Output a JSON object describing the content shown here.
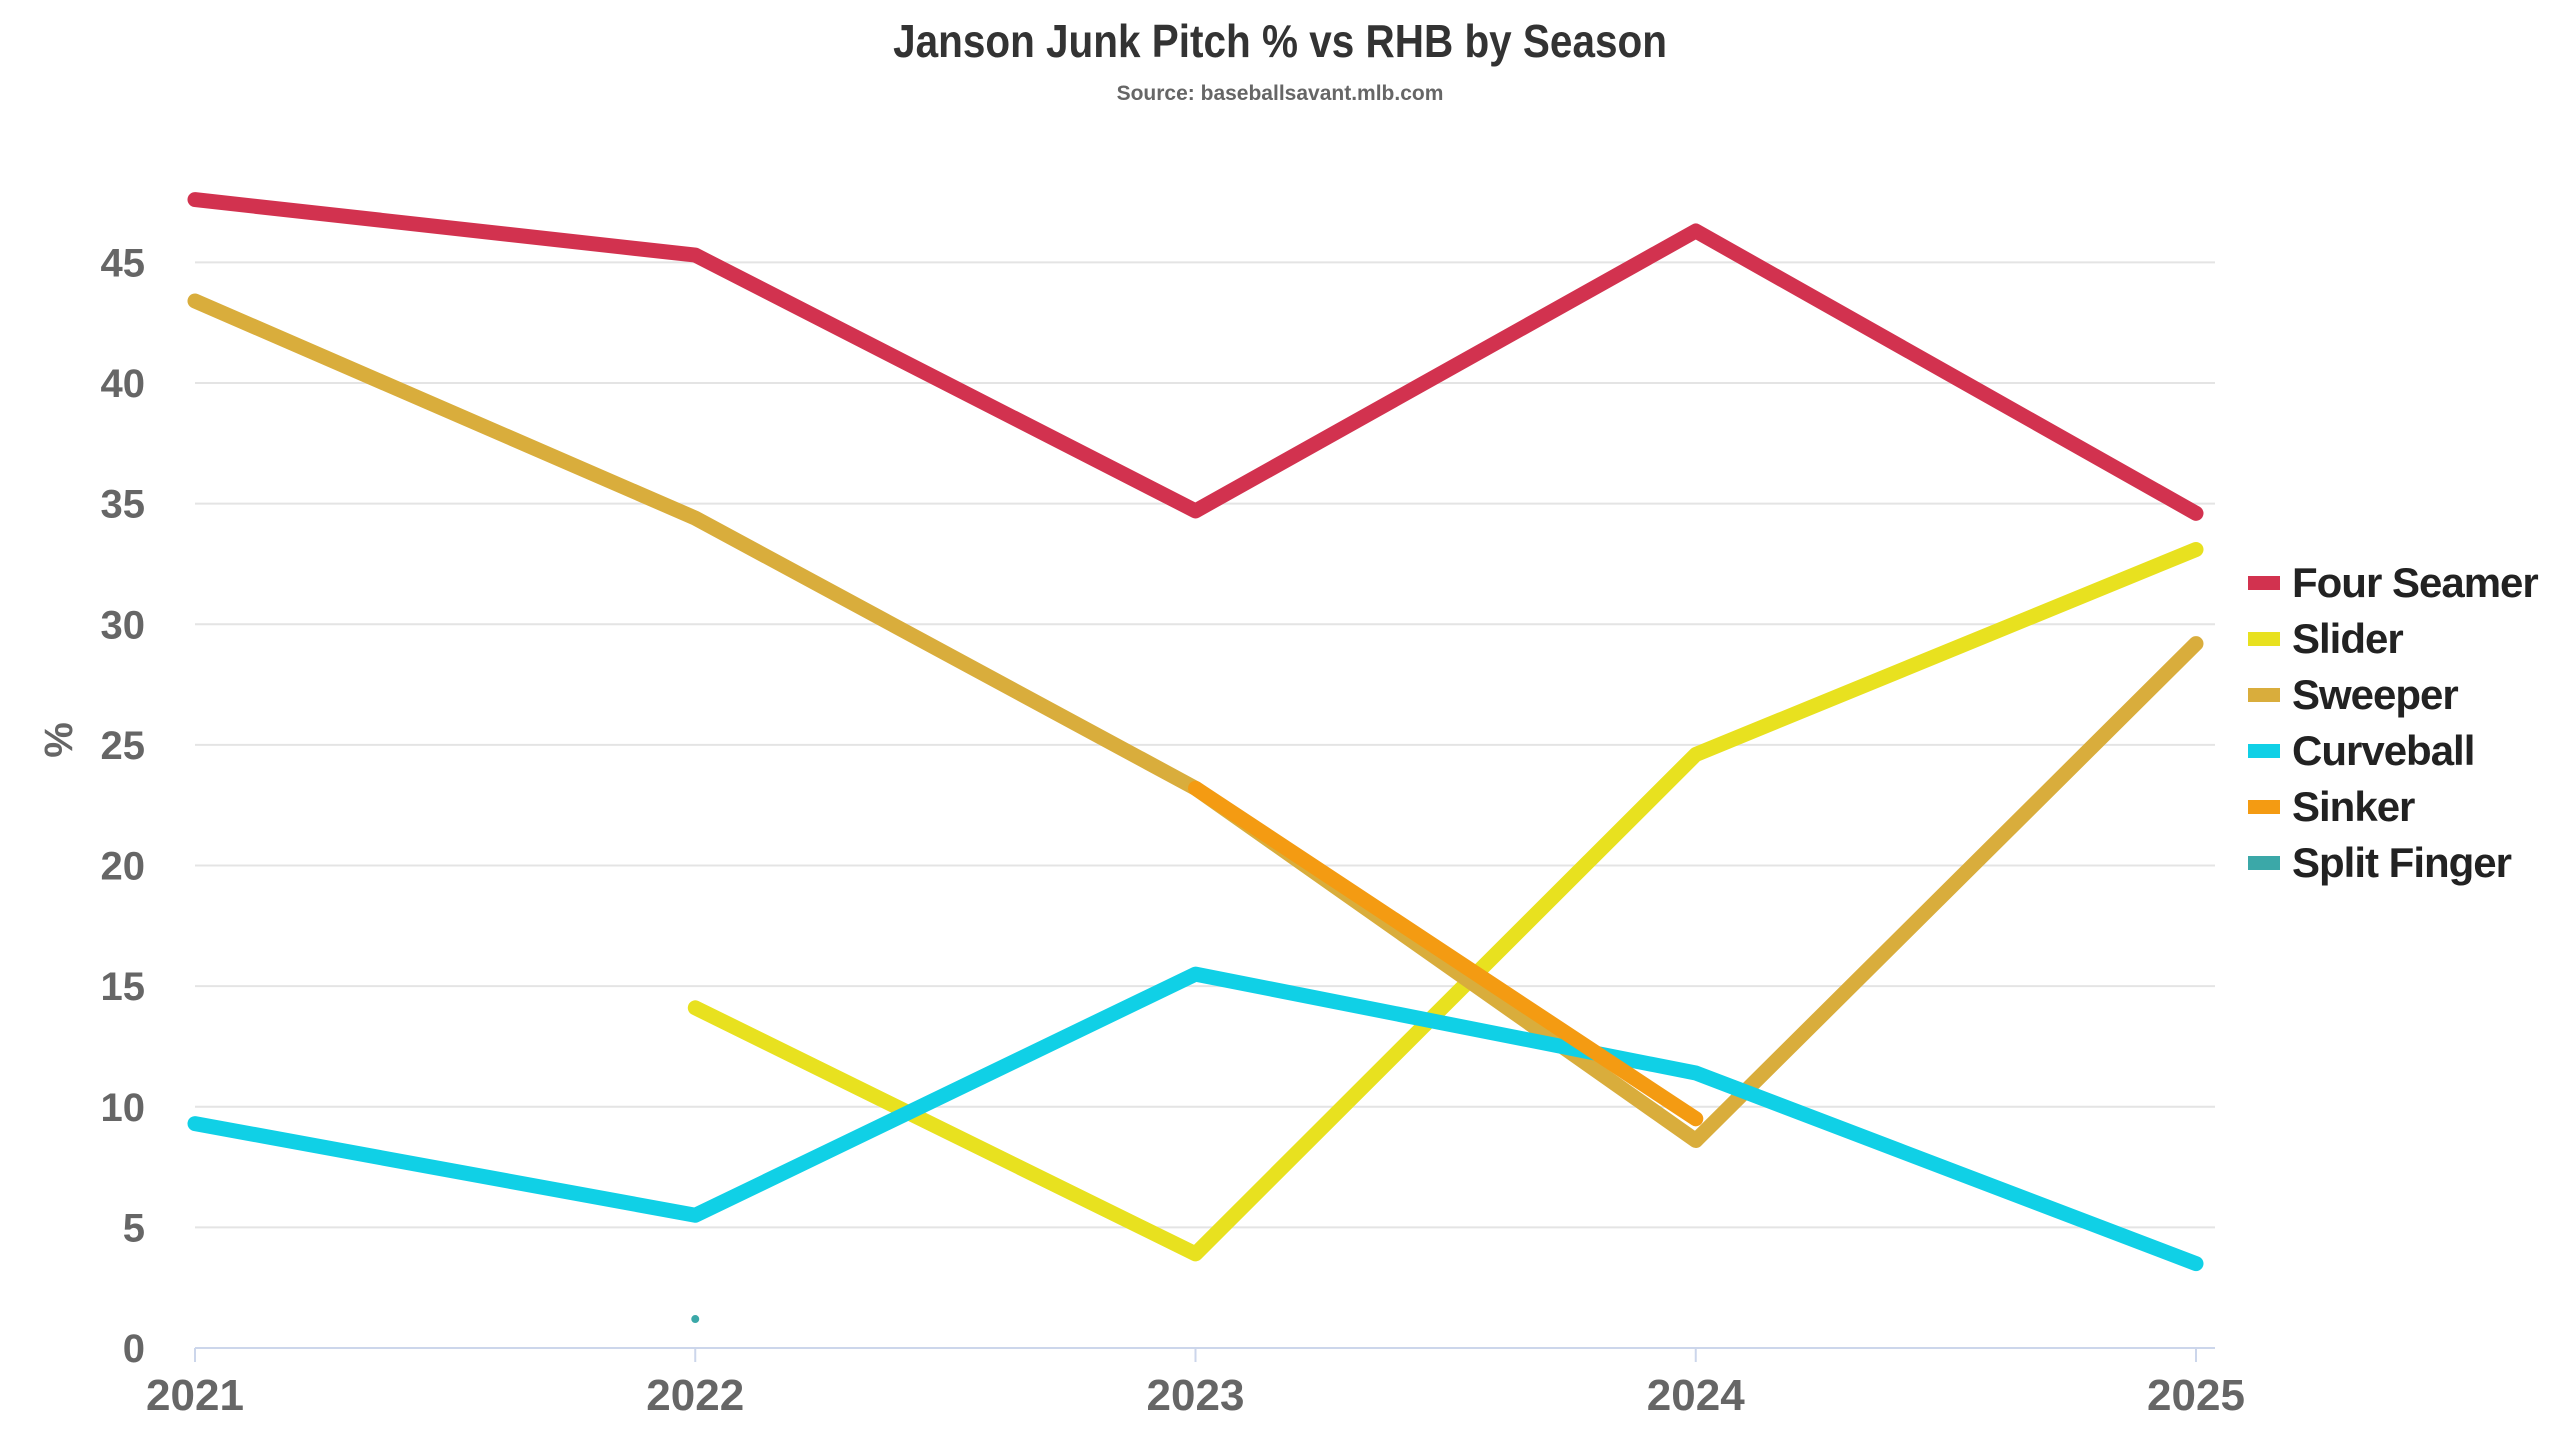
{
  "chart_data": {
    "type": "line",
    "title": "Janson Junk Pitch % vs RHB by Season",
    "subtitle": "Source: baseballsavant.mlb.com",
    "xlabel": "",
    "ylabel": "%",
    "x": [
      "2021",
      "2022",
      "2023",
      "2024",
      "2025"
    ],
    "ylim": [
      0,
      48
    ],
    "yticks": [
      0,
      5,
      10,
      15,
      20,
      25,
      30,
      35,
      40,
      45
    ],
    "grid": true,
    "legend_position": "right",
    "series": [
      {
        "name": "Four Seamer",
        "color": "#d2324f",
        "values": [
          47.6,
          45.3,
          34.7,
          46.3,
          34.6
        ]
      },
      {
        "name": "Slider",
        "color": "#e8e11f",
        "values": [
          null,
          14.1,
          3.9,
          24.6,
          33.1
        ]
      },
      {
        "name": "Sweeper",
        "color": "#d9ad3c",
        "values": [
          43.4,
          34.4,
          23.2,
          8.6,
          29.2
        ]
      },
      {
        "name": "Curveball",
        "color": "#10d0e6",
        "values": [
          9.3,
          5.5,
          15.5,
          11.4,
          3.5
        ]
      },
      {
        "name": "Sinker",
        "color": "#f49b12",
        "values": [
          null,
          null,
          23.2,
          9.5,
          null
        ]
      },
      {
        "name": "Split Finger",
        "color": "#3ba8a8",
        "values": [
          null,
          1.2,
          null,
          null,
          null
        ]
      }
    ]
  }
}
